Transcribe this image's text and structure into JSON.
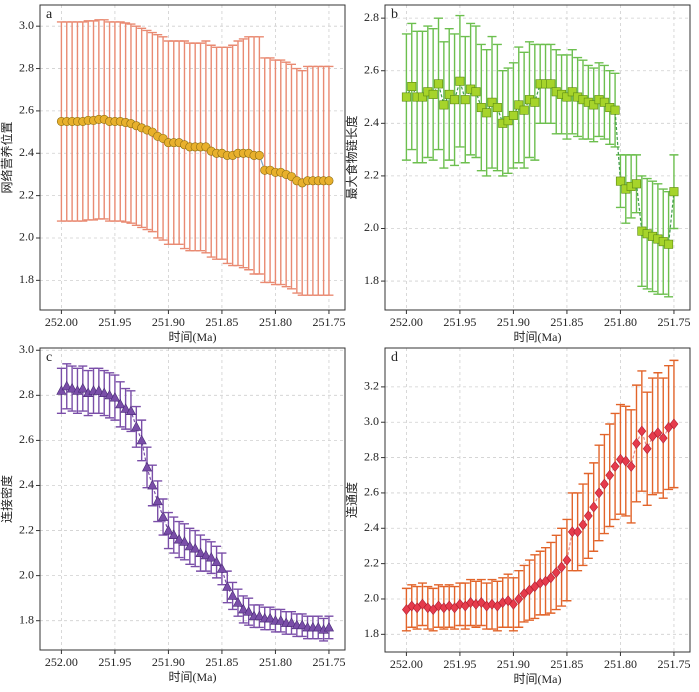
{
  "chart_data": [
    {
      "type": "errorbar",
      "label": "a",
      "xlabel": "时间(Ma)",
      "ylabel": "网络营养位置",
      "x": [
        252.0,
        251.995,
        251.99,
        251.985,
        251.98,
        251.975,
        251.97,
        251.965,
        251.96,
        251.955,
        251.95,
        251.945,
        251.94,
        251.935,
        251.93,
        251.925,
        251.92,
        251.915,
        251.91,
        251.905,
        251.9,
        251.895,
        251.89,
        251.885,
        251.88,
        251.875,
        251.87,
        251.865,
        251.86,
        251.855,
        251.85,
        251.845,
        251.84,
        251.835,
        251.83,
        251.825,
        251.82,
        251.815,
        251.81,
        251.805,
        251.8,
        251.795,
        251.79,
        251.785,
        251.78,
        251.775,
        251.77,
        251.765,
        251.76,
        251.755,
        251.75
      ],
      "values": [
        2.55,
        2.55,
        2.55,
        2.55,
        2.55,
        2.555,
        2.555,
        2.56,
        2.56,
        2.55,
        2.55,
        2.55,
        2.545,
        2.54,
        2.53,
        2.52,
        2.51,
        2.5,
        2.48,
        2.47,
        2.45,
        2.45,
        2.45,
        2.44,
        2.43,
        2.43,
        2.43,
        2.43,
        2.41,
        2.4,
        2.4,
        2.39,
        2.39,
        2.4,
        2.4,
        2.4,
        2.39,
        2.39,
        2.32,
        2.32,
        2.31,
        2.31,
        2.3,
        2.29,
        2.27,
        2.26,
        2.27,
        2.27,
        2.27,
        2.27,
        2.27
      ],
      "errors": [
        0.47,
        0.47,
        0.47,
        0.47,
        0.47,
        0.47,
        0.47,
        0.47,
        0.47,
        0.47,
        0.47,
        0.47,
        0.47,
        0.47,
        0.47,
        0.47,
        0.47,
        0.47,
        0.48,
        0.48,
        0.48,
        0.48,
        0.48,
        0.49,
        0.49,
        0.49,
        0.49,
        0.5,
        0.5,
        0.5,
        0.5,
        0.51,
        0.52,
        0.53,
        0.54,
        0.55,
        0.56,
        0.56,
        0.53,
        0.53,
        0.53,
        0.53,
        0.53,
        0.53,
        0.53,
        0.53,
        0.54,
        0.54,
        0.54,
        0.54,
        0.54
      ],
      "xlim": [
        252.02,
        251.735
      ],
      "xticks": [
        {
          "value": 252,
          "label": "252.00"
        },
        251.95,
        {
          "value": 251.9,
          "label": "251.90"
        },
        251.85,
        {
          "value": 251.8,
          "label": "251.80"
        },
        251.75
      ],
      "ylim": [
        1.66,
        3.1
      ],
      "yticks": [
        1.8,
        {
          "value": 2,
          "label": "2.0"
        },
        2.2,
        2.4,
        2.6,
        2.8,
        {
          "value": 3,
          "label": "3.0"
        }
      ],
      "color": "#e8b02c",
      "error_color": "#e98a72",
      "line_color": "#7aa6c8",
      "marker": "circle",
      "grid": true
    },
    {
      "type": "errorbar",
      "label": "b",
      "xlabel": "时间(Ma)",
      "ylabel": "最大食物链长度",
      "x": [
        252.0,
        251.995,
        251.99,
        251.985,
        251.98,
        251.975,
        251.97,
        251.965,
        251.96,
        251.955,
        251.95,
        251.945,
        251.94,
        251.935,
        251.93,
        251.925,
        251.92,
        251.915,
        251.91,
        251.905,
        251.9,
        251.895,
        251.89,
        251.885,
        251.88,
        251.875,
        251.87,
        251.865,
        251.86,
        251.855,
        251.85,
        251.845,
        251.84,
        251.835,
        251.83,
        251.825,
        251.82,
        251.815,
        251.81,
        251.805,
        251.8,
        251.795,
        251.79,
        251.785,
        251.78,
        251.775,
        251.77,
        251.765,
        251.76,
        251.755,
        251.75
      ],
      "values": [
        2.5,
        2.54,
        2.5,
        2.5,
        2.52,
        2.51,
        2.55,
        2.47,
        2.51,
        2.49,
        2.56,
        2.49,
        2.53,
        2.52,
        2.46,
        2.44,
        2.48,
        2.46,
        2.4,
        2.41,
        2.43,
        2.47,
        2.45,
        2.49,
        2.48,
        2.55,
        2.55,
        2.55,
        2.52,
        2.51,
        2.5,
        2.52,
        2.5,
        2.49,
        2.48,
        2.47,
        2.49,
        2.48,
        2.46,
        2.45,
        2.18,
        2.15,
        2.16,
        2.17,
        1.99,
        1.98,
        1.97,
        1.96,
        1.95,
        1.94,
        2.14
      ],
      "errors": [
        0.24,
        0.24,
        0.25,
        0.25,
        0.25,
        0.25,
        0.25,
        0.24,
        0.25,
        0.25,
        0.25,
        0.24,
        0.25,
        0.25,
        0.24,
        0.24,
        0.25,
        0.24,
        0.2,
        0.2,
        0.2,
        0.22,
        0.22,
        0.22,
        0.22,
        0.15,
        0.15,
        0.15,
        0.16,
        0.15,
        0.16,
        0.16,
        0.15,
        0.15,
        0.14,
        0.14,
        0.14,
        0.14,
        0.14,
        0.14,
        0.1,
        0.13,
        0.12,
        0.11,
        0.21,
        0.21,
        0.21,
        0.21,
        0.2,
        0.2,
        0.14
      ],
      "xlim": [
        252.02,
        251.735
      ],
      "xticks": [
        {
          "value": 252,
          "label": "252.00"
        },
        251.95,
        {
          "value": 251.9,
          "label": "251.90"
        },
        251.85,
        {
          "value": 251.8,
          "label": "251.80"
        },
        251.75
      ],
      "ylim": [
        1.69,
        2.85
      ],
      "yticks": [
        1.8,
        {
          "value": 2,
          "label": "2.0"
        },
        2.2,
        2.4,
        2.6,
        2.8
      ],
      "color": "#a6d42a",
      "error_color": "#6cbf4e",
      "line_color": "#3f9a4a",
      "marker": "square",
      "grid": true
    },
    {
      "type": "errorbar",
      "label": "c",
      "xlabel": "时间(Ma)",
      "ylabel": "连接密度",
      "x": [
        252.0,
        251.995,
        251.99,
        251.985,
        251.98,
        251.975,
        251.97,
        251.965,
        251.96,
        251.955,
        251.95,
        251.945,
        251.94,
        251.935,
        251.93,
        251.925,
        251.92,
        251.915,
        251.91,
        251.905,
        251.9,
        251.895,
        251.89,
        251.885,
        251.88,
        251.875,
        251.87,
        251.865,
        251.86,
        251.855,
        251.85,
        251.845,
        251.84,
        251.835,
        251.83,
        251.825,
        251.82,
        251.815,
        251.81,
        251.805,
        251.8,
        251.795,
        251.79,
        251.785,
        251.78,
        251.775,
        251.77,
        251.765,
        251.76,
        251.755,
        251.75
      ],
      "values": [
        2.82,
        2.84,
        2.83,
        2.82,
        2.83,
        2.81,
        2.82,
        2.82,
        2.81,
        2.8,
        2.79,
        2.76,
        2.74,
        2.73,
        2.66,
        2.6,
        2.48,
        2.4,
        2.33,
        2.26,
        2.2,
        2.18,
        2.16,
        2.15,
        2.13,
        2.12,
        2.1,
        2.09,
        2.08,
        2.06,
        2.03,
        1.95,
        1.91,
        1.88,
        1.85,
        1.84,
        1.82,
        1.82,
        1.81,
        1.81,
        1.8,
        1.8,
        1.79,
        1.79,
        1.78,
        1.78,
        1.77,
        1.77,
        1.77,
        1.76,
        1.77
      ],
      "errors": [
        0.1,
        0.1,
        0.1,
        0.1,
        0.1,
        0.1,
        0.1,
        0.1,
        0.1,
        0.1,
        0.1,
        0.1,
        0.09,
        0.09,
        0.09,
        0.09,
        0.09,
        0.09,
        0.09,
        0.08,
        0.08,
        0.08,
        0.08,
        0.08,
        0.08,
        0.08,
        0.08,
        0.07,
        0.07,
        0.07,
        0.07,
        0.07,
        0.06,
        0.06,
        0.06,
        0.06,
        0.05,
        0.05,
        0.05,
        0.05,
        0.05,
        0.05,
        0.05,
        0.05,
        0.05,
        0.05,
        0.05,
        0.05,
        0.05,
        0.05,
        0.05
      ],
      "xlim": [
        252.02,
        251.735
      ],
      "xticks": [
        {
          "value": 252,
          "label": "252.00"
        },
        251.95,
        {
          "value": 251.9,
          "label": "251.90"
        },
        251.85,
        {
          "value": 251.8,
          "label": "251.80"
        },
        251.75
      ],
      "ylim": [
        1.67,
        3.01
      ],
      "yticks": [
        1.8,
        {
          "value": 2,
          "label": "2.0"
        },
        2.2,
        2.4,
        2.6,
        2.8,
        {
          "value": 3,
          "label": "3.0"
        }
      ],
      "color": "#7a4ea8",
      "error_color": "#7a4ea8",
      "line_color": "#7a4ea8",
      "marker": "triangle",
      "grid": true
    },
    {
      "type": "errorbar",
      "label": "d",
      "xlabel": "时间(Ma)",
      "ylabel": "连通度",
      "x": [
        252.0,
        251.995,
        251.99,
        251.985,
        251.98,
        251.975,
        251.97,
        251.965,
        251.96,
        251.955,
        251.95,
        251.945,
        251.94,
        251.935,
        251.93,
        251.925,
        251.92,
        251.915,
        251.91,
        251.905,
        251.9,
        251.895,
        251.89,
        251.885,
        251.88,
        251.875,
        251.87,
        251.865,
        251.86,
        251.855,
        251.85,
        251.845,
        251.84,
        251.835,
        251.83,
        251.825,
        251.82,
        251.815,
        251.81,
        251.805,
        251.8,
        251.795,
        251.79,
        251.785,
        251.78,
        251.775,
        251.77,
        251.765,
        251.76,
        251.755,
        251.75
      ],
      "values": [
        1.94,
        1.96,
        1.95,
        1.97,
        1.95,
        1.94,
        1.96,
        1.95,
        1.96,
        1.95,
        1.97,
        1.96,
        1.98,
        1.97,
        1.98,
        1.96,
        1.97,
        1.96,
        1.98,
        1.99,
        1.97,
        2.0,
        2.03,
        2.05,
        2.07,
        2.09,
        2.1,
        2.12,
        2.15,
        2.18,
        2.22,
        2.38,
        2.38,
        2.42,
        2.47,
        2.52,
        2.6,
        2.65,
        2.7,
        2.75,
        2.79,
        2.78,
        2.75,
        2.88,
        2.95,
        2.85,
        2.92,
        2.94,
        2.91,
        2.97,
        2.99
      ],
      "errors": [
        0.12,
        0.12,
        0.12,
        0.12,
        0.12,
        0.12,
        0.12,
        0.12,
        0.12,
        0.12,
        0.12,
        0.13,
        0.13,
        0.13,
        0.13,
        0.13,
        0.14,
        0.14,
        0.14,
        0.15,
        0.15,
        0.16,
        0.16,
        0.17,
        0.18,
        0.18,
        0.19,
        0.2,
        0.21,
        0.22,
        0.23,
        0.22,
        0.22,
        0.23,
        0.24,
        0.25,
        0.27,
        0.28,
        0.29,
        0.3,
        0.31,
        0.31,
        0.32,
        0.33,
        0.34,
        0.32,
        0.33,
        0.34,
        0.34,
        0.35,
        0.36
      ],
      "xlim": [
        252.02,
        251.735
      ],
      "xticks": [
        {
          "value": 252,
          "label": "252.00"
        },
        251.95,
        {
          "value": 251.9,
          "label": "251.90"
        },
        251.85,
        {
          "value": 251.8,
          "label": "251.80"
        },
        251.75
      ],
      "ylim": [
        1.7,
        3.42
      ],
      "yticks": [
        1.8,
        {
          "value": 2,
          "label": "2.0"
        },
        2.2,
        2.4,
        2.6,
        2.8,
        {
          "value": 3,
          "label": "3.0"
        },
        3.2
      ],
      "color": "#e63b4c",
      "error_color": "#e2642a",
      "line_color": "#e88a8a",
      "marker": "diamond",
      "grid": true
    }
  ]
}
